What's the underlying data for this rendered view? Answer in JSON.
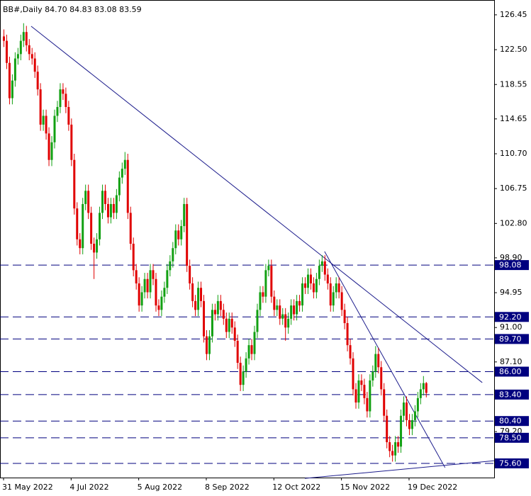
{
  "chart_data": {
    "type": "candlestick",
    "title": "BB#,Daily  84.70 84.83 83.08 83.59",
    "up_color": "#12a012",
    "down_color": "#e00000",
    "level_color": "#00007f",
    "trendline_color": "#1c1c8c",
    "ylim": [
      73.99,
      128.13
    ],
    "yticks": [
      126.45,
      {
        "value": 122.5,
        "label": "122.50"
      },
      118.55,
      114.65,
      {
        "value": 110.7,
        "label": "110.70"
      },
      106.75,
      {
        "value": 102.8,
        "label": "102.80"
      },
      {
        "value": 98.9,
        "label": "98.90"
      },
      94.95,
      {
        "value": 91,
        "label": "91.00"
      },
      {
        "value": 87.1,
        "label": "87.10"
      },
      {
        "value": 79.2,
        "label": "79.20"
      }
    ],
    "levels": [
      98.08,
      {
        "value": 92.2,
        "label": "92.20"
      },
      {
        "value": 89.7,
        "label": "89.70"
      },
      {
        "value": 86,
        "label": "86.00"
      },
      {
        "value": 83.4,
        "label": "83.40"
      },
      {
        "value": 80.4,
        "label": "80.40"
      },
      {
        "value": 78.5,
        "label": "78.50"
      },
      {
        "value": 75.6,
        "label": "75.60"
      }
    ],
    "trendlines": [
      {
        "x": [
          9.8,
          170
        ],
        "y": [
          125.16,
          84.76
        ]
      },
      {
        "x": [
          114,
          156.8
        ],
        "y": [
          99.62,
          75.12
        ]
      },
      {
        "x": [
          107,
          174.2
        ],
        "y": [
          73.9,
          75.9
        ]
      }
    ],
    "categories": [
      "31 May 2022",
      null,
      null,
      null,
      null,
      null,
      null,
      null,
      null,
      null,
      null,
      null,
      null,
      null,
      null,
      null,
      null,
      null,
      null,
      null,
      null,
      null,
      null,
      null,
      "4 Jul 2022",
      null,
      null,
      null,
      null,
      null,
      null,
      null,
      null,
      null,
      null,
      null,
      null,
      null,
      null,
      null,
      null,
      null,
      null,
      null,
      null,
      null,
      null,
      null,
      "5 Aug 2022",
      null,
      null,
      null,
      null,
      null,
      null,
      null,
      null,
      null,
      null,
      null,
      null,
      null,
      null,
      null,
      null,
      null,
      null,
      null,
      null,
      null,
      null,
      null,
      "8 Sep 2022",
      null,
      null,
      null,
      null,
      null,
      null,
      null,
      null,
      null,
      null,
      null,
      null,
      null,
      null,
      null,
      null,
      null,
      null,
      null,
      null,
      null,
      null,
      null,
      "12 Oct 2022",
      null,
      null,
      null,
      null,
      null,
      null,
      null,
      null,
      null,
      null,
      null,
      null,
      null,
      null,
      null,
      null,
      null,
      null,
      null,
      null,
      null,
      null,
      null,
      "15 Nov 2022",
      null,
      null,
      null,
      null,
      null,
      null,
      null,
      null,
      null,
      null,
      null,
      null,
      null,
      null,
      null,
      null,
      null,
      null,
      null,
      null,
      null,
      null,
      null,
      "19 Dec 2022",
      null,
      null,
      null,
      null,
      null,
      null
    ],
    "ohlc": [
      [
        124,
        124.8,
        122.8,
        123.5
      ],
      [
        123.5,
        124.2,
        120.3,
        121
      ],
      [
        121,
        121.7,
        116.3,
        117
      ],
      [
        117,
        119.7,
        116.3,
        119
      ],
      [
        119,
        122.2,
        118.3,
        121.5
      ],
      [
        121.5,
        122.7,
        120.8,
        122
      ],
      [
        122,
        124.2,
        121.3,
        123.5
      ],
      [
        123.5,
        125.5,
        122.8,
        124.5
      ],
      [
        124.5,
        125.2,
        122.3,
        123
      ],
      [
        123,
        123.7,
        121.3,
        122
      ],
      [
        122,
        122.7,
        120.8,
        121.5
      ],
      [
        121.5,
        122.2,
        119.3,
        120
      ],
      [
        120,
        120.7,
        117.3,
        118
      ],
      [
        118,
        118.7,
        113.3,
        114
      ],
      [
        114,
        115.7,
        113.3,
        115
      ],
      [
        115,
        115.7,
        112.3,
        113
      ],
      [
        113,
        113.7,
        109.3,
        110
      ],
      [
        110,
        112.7,
        109.3,
        112
      ],
      [
        112,
        115.7,
        111.3,
        115
      ],
      [
        115,
        116.7,
        114.3,
        116
      ],
      [
        116,
        118.7,
        115.3,
        118
      ],
      [
        118,
        118.7,
        116.8,
        117.5
      ],
      [
        117.5,
        118.2,
        115.3,
        116
      ],
      [
        116,
        116.7,
        113.3,
        114
      ],
      [
        114,
        114.7,
        109.3,
        110
      ],
      [
        110,
        110.7,
        103.8,
        104.5
      ],
      [
        104.5,
        105.2,
        100.3,
        101
      ],
      [
        101,
        101.7,
        99.3,
        100
      ],
      [
        100,
        105.7,
        99.3,
        105
      ],
      [
        105,
        107.2,
        104.3,
        106.5
      ],
      [
        106.5,
        107.2,
        103.3,
        104
      ],
      [
        104,
        104.7,
        99.8,
        100.5
      ],
      [
        100.5,
        101.2,
        96.5,
        99.5
      ],
      [
        99.5,
        101.7,
        98.8,
        101
      ],
      [
        101,
        104.7,
        100.3,
        104
      ],
      [
        104,
        107.2,
        103.3,
        106.5
      ],
      [
        106.5,
        107.2,
        104.3,
        105
      ],
      [
        105,
        105.7,
        102.8,
        103.5
      ],
      [
        103.5,
        105.7,
        102.8,
        105
      ],
      [
        105,
        105.7,
        103.3,
        104
      ],
      [
        104,
        106.7,
        103.3,
        106
      ],
      [
        106,
        108.7,
        105.3,
        108
      ],
      [
        108,
        109.7,
        107.3,
        109
      ],
      [
        109,
        110.9,
        108.3,
        110
      ],
      [
        110,
        110.7,
        103.3,
        104
      ],
      [
        104,
        104.7,
        99.8,
        100.5
      ],
      [
        100.5,
        101.2,
        96.8,
        97.5
      ],
      [
        97.5,
        98.2,
        95.3,
        96
      ],
      [
        96,
        96.7,
        92.8,
        93.5
      ],
      [
        93.5,
        95.7,
        92.8,
        95
      ],
      [
        95,
        97.2,
        94.3,
        96.5
      ],
      [
        96.5,
        97.2,
        94.3,
        95
      ],
      [
        95,
        98.2,
        94.3,
        97.5
      ],
      [
        97.5,
        98.2,
        95.8,
        96.5
      ],
      [
        96.5,
        97.2,
        92.8,
        93.5
      ],
      [
        93.5,
        94.2,
        92.3,
        93
      ],
      [
        93,
        95.2,
        92.3,
        94.5
      ],
      [
        94.5,
        96.2,
        93.8,
        95.5
      ],
      [
        95.5,
        98.2,
        94.8,
        97.5
      ],
      [
        97.5,
        99.2,
        96.8,
        98.5
      ],
      [
        98.5,
        100.7,
        97.8,
        100
      ],
      [
        100,
        102.7,
        99.3,
        102
      ],
      [
        102,
        102.7,
        100.3,
        101
      ],
      [
        101,
        103.2,
        100.3,
        102.5
      ],
      [
        102.5,
        105.7,
        101.8,
        105
      ],
      [
        105,
        105.7,
        97.3,
        98
      ],
      [
        98,
        98.7,
        95.3,
        96
      ],
      [
        96,
        96.7,
        93.3,
        94
      ],
      [
        94,
        94.7,
        92.3,
        93
      ],
      [
        93,
        96.2,
        92.3,
        95.5
      ],
      [
        95.5,
        96.2,
        93.3,
        94
      ],
      [
        94,
        94.7,
        89.3,
        90
      ],
      [
        90,
        90.7,
        87.3,
        88
      ],
      [
        88,
        90.7,
        87.3,
        90
      ],
      [
        90,
        93.7,
        89.3,
        93
      ],
      [
        93,
        93.7,
        91.8,
        92.5
      ],
      [
        92.5,
        94.7,
        91.8,
        94
      ],
      [
        94,
        94.7,
        92.3,
        93
      ],
      [
        93,
        93.7,
        91.3,
        92
      ],
      [
        92,
        92.7,
        89.8,
        90.5
      ],
      [
        90.5,
        92.7,
        89.8,
        92
      ],
      [
        92,
        92.7,
        90.3,
        91
      ],
      [
        91,
        91.7,
        88.8,
        89.5
      ],
      [
        89.5,
        90.2,
        86.3,
        87
      ],
      [
        87,
        87.7,
        83.8,
        84.5
      ],
      [
        84.5,
        86.7,
        83.8,
        86
      ],
      [
        86,
        88.2,
        85.3,
        87.5
      ],
      [
        87.5,
        89.7,
        86.8,
        89
      ],
      [
        89,
        89.7,
        87.3,
        88
      ],
      [
        88,
        91.2,
        87.3,
        90.5
      ],
      [
        90.5,
        93.7,
        89.8,
        93
      ],
      [
        93,
        95.7,
        92.3,
        95
      ],
      [
        95,
        95.7,
        93.8,
        94.5
      ],
      [
        94.5,
        98.2,
        93.8,
        97.5
      ],
      [
        97.5,
        98.7,
        96.8,
        98
      ],
      [
        98,
        98.7,
        93.8,
        94.5
      ],
      [
        94.5,
        95.2,
        92.3,
        93
      ],
      [
        93,
        94.2,
        92.3,
        93.5
      ],
      [
        93.5,
        94.2,
        91.3,
        92
      ],
      [
        92,
        93.2,
        91.3,
        92.5
      ],
      [
        92.5,
        93.2,
        89.5,
        91
      ],
      [
        91,
        92.7,
        90.3,
        92
      ],
      [
        92,
        94.2,
        91.3,
        93.5
      ],
      [
        93.5,
        94.2,
        91.8,
        92.5
      ],
      [
        92.5,
        94.7,
        91.8,
        94
      ],
      [
        94,
        94.7,
        92.8,
        93.5
      ],
      [
        93.5,
        96.7,
        92.8,
        96
      ],
      [
        96,
        96.7,
        94.8,
        95.5
      ],
      [
        95.5,
        97.7,
        94.8,
        97
      ],
      [
        97,
        97.7,
        95.3,
        96
      ],
      [
        96,
        96.7,
        94.3,
        95
      ],
      [
        95,
        97.2,
        94.3,
        96.5
      ],
      [
        96.5,
        98.7,
        95.8,
        98
      ],
      [
        98,
        99.2,
        97.3,
        98.5
      ],
      [
        98.5,
        99.2,
        96.3,
        97
      ],
      [
        97,
        97.7,
        95.3,
        96
      ],
      [
        96,
        96.7,
        92.8,
        93.5
      ],
      [
        93.5,
        95.7,
        92.8,
        95
      ],
      [
        95,
        96.7,
        94.3,
        96
      ],
      [
        96,
        96.7,
        94.3,
        95
      ],
      [
        95,
        95.7,
        92.3,
        93
      ],
      [
        93,
        93.7,
        90.8,
        91.5
      ],
      [
        91.5,
        92.2,
        88.3,
        89
      ],
      [
        89,
        89.7,
        86.8,
        87.5
      ],
      [
        87.5,
        88.2,
        83.3,
        84
      ],
      [
        84,
        84.7,
        81.8,
        82.5
      ],
      [
        82.5,
        85.7,
        81.8,
        85
      ],
      [
        85,
        85.7,
        83.8,
        84.5
      ],
      [
        84.5,
        85.2,
        82.3,
        83
      ],
      [
        83,
        83.7,
        80.8,
        81.5
      ],
      [
        81.5,
        85.7,
        80.8,
        85
      ],
      [
        85,
        86.7,
        84.3,
        86
      ],
      [
        86,
        88.9,
        85.3,
        88
      ],
      [
        88,
        88.7,
        85.8,
        86.5
      ],
      [
        86.5,
        87.2,
        83.3,
        84
      ],
      [
        84,
        84.7,
        80.3,
        81
      ],
      [
        81,
        81.7,
        77.3,
        78
      ],
      [
        78,
        78.7,
        76.3,
        77
      ],
      [
        77,
        77.7,
        75.8,
        76.5
      ],
      [
        76.5,
        78.7,
        75.8,
        78
      ],
      [
        78,
        78.7,
        76.8,
        77.5
      ],
      [
        77.5,
        81.7,
        76.8,
        81
      ],
      [
        81,
        83.2,
        80.3,
        82.5
      ],
      [
        82.5,
        83.2,
        79.8,
        80.5
      ],
      [
        80.5,
        81.2,
        78.8,
        79.5
      ],
      [
        79.5,
        81.2,
        78.8,
        80.5
      ],
      [
        80.5,
        82.2,
        79.8,
        81.5
      ],
      [
        81.5,
        83.7,
        80.8,
        83
      ],
      [
        83,
        84.7,
        82.3,
        84
      ],
      [
        84,
        85.5,
        83.3,
        84.7
      ],
      [
        84.7,
        84.83,
        83.08,
        83.59
      ]
    ]
  }
}
